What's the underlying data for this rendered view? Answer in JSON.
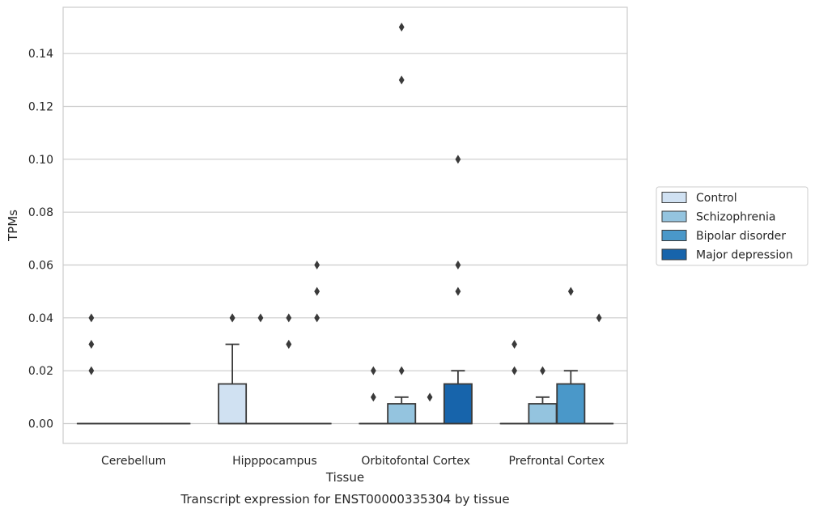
{
  "chart_data": {
    "type": "box",
    "xlabel": "Tissue",
    "ylabel": "TPMs",
    "caption": "Transcript expression for ENST00000335304 by tissue",
    "ylim": [
      -0.0075,
      0.1575
    ],
    "yticks": [
      "0.00",
      "0.02",
      "0.04",
      "0.06",
      "0.08",
      "0.10",
      "0.12",
      "0.14"
    ],
    "categories": [
      "Cerebellum",
      "Hipppocampus",
      "Orbitofontal Cortex",
      "Prefrontal Cortex"
    ],
    "grid": "horizontal",
    "legend_position": "right",
    "series": [
      {
        "name": "Control",
        "color": "#d0e1f2",
        "boxes": [
          {
            "q1": 0,
            "median": 0,
            "q3": 0,
            "whislo": 0,
            "whishi": 0,
            "fliers": [
              0.02,
              0.03,
              0.04
            ]
          },
          {
            "q1": 0,
            "median": 0,
            "q3": 0.015,
            "whislo": 0,
            "whishi": 0.03,
            "fliers": [
              0.04,
              0.04
            ]
          },
          {
            "q1": 0,
            "median": 0,
            "q3": 0,
            "whislo": 0,
            "whishi": 0,
            "fliers": [
              0.01,
              0.02
            ]
          },
          {
            "q1": 0,
            "median": 0,
            "q3": 0,
            "whislo": 0,
            "whishi": 0,
            "fliers": [
              0.02,
              0.03
            ]
          }
        ]
      },
      {
        "name": "Schizophrenia",
        "color": "#94c4df",
        "boxes": [
          {
            "q1": 0,
            "median": 0,
            "q3": 0,
            "whislo": 0,
            "whishi": 0,
            "fliers": []
          },
          {
            "q1": 0,
            "median": 0,
            "q3": 0,
            "whislo": 0,
            "whishi": 0,
            "fliers": [
              0.04
            ]
          },
          {
            "q1": 0,
            "median": 0,
            "q3": 0.0075,
            "whislo": 0,
            "whishi": 0.01,
            "fliers": [
              0.02,
              0.13,
              0.15
            ]
          },
          {
            "q1": 0,
            "median": 0,
            "q3": 0.0075,
            "whislo": 0,
            "whishi": 0.01,
            "fliers": [
              0.02
            ]
          }
        ]
      },
      {
        "name": "Bipolar disorder",
        "color": "#4a98c9",
        "boxes": [
          {
            "q1": 0,
            "median": 0,
            "q3": 0,
            "whislo": 0,
            "whishi": 0,
            "fliers": []
          },
          {
            "q1": 0,
            "median": 0,
            "q3": 0,
            "whislo": 0,
            "whishi": 0,
            "fliers": [
              0.03,
              0.03,
              0.04
            ]
          },
          {
            "q1": 0,
            "median": 0,
            "q3": 0,
            "whislo": 0,
            "whishi": 0,
            "fliers": [
              0.01
            ]
          },
          {
            "q1": 0,
            "median": 0,
            "q3": 0.015,
            "whislo": 0,
            "whishi": 0.02,
            "fliers": [
              0.05
            ]
          }
        ]
      },
      {
        "name": "Major depression",
        "color": "#1764ab",
        "boxes": [
          {
            "q1": 0,
            "median": 0,
            "q3": 0,
            "whislo": 0,
            "whishi": 0,
            "fliers": []
          },
          {
            "q1": 0,
            "median": 0,
            "q3": 0,
            "whislo": 0,
            "whishi": 0,
            "fliers": [
              0.04,
              0.05,
              0.06
            ]
          },
          {
            "q1": 0,
            "median": 0,
            "q3": 0.015,
            "whislo": 0,
            "whishi": 0.02,
            "fliers": [
              0.05,
              0.06,
              0.1
            ]
          },
          {
            "q1": 0,
            "median": 0,
            "q3": 0,
            "whislo": 0,
            "whishi": 0,
            "fliers": [
              0.04
            ]
          }
        ]
      }
    ]
  }
}
